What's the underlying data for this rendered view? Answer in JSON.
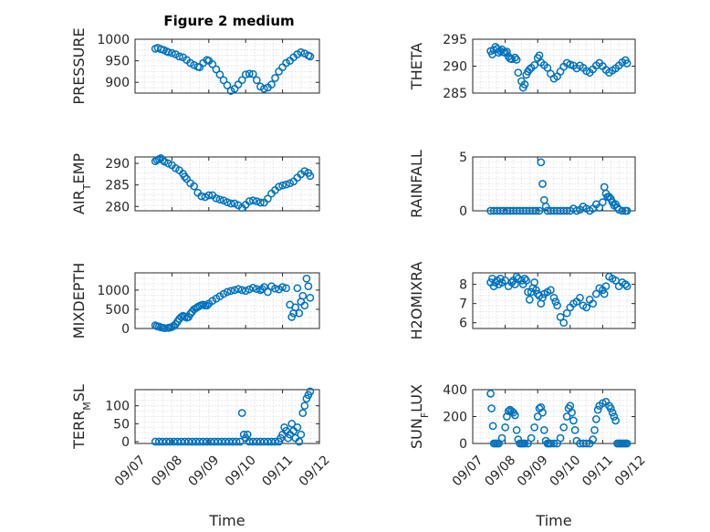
{
  "figure": {
    "title": "Figure 2 medium"
  },
  "chart_data": [
    {
      "type": "scatter",
      "ylabel": "PRESSURE",
      "ylabel_sub": "",
      "ylim": [
        875,
        1000
      ],
      "yticks": [
        900,
        950,
        1000
      ],
      "xlim": [
        0,
        5
      ],
      "grid": true,
      "show_xticks": false,
      "series": [
        {
          "color": "#0072bd",
          "x": [
            0.55,
            0.62,
            0.7,
            0.78,
            0.85,
            0.9,
            1.0,
            1.1,
            1.2,
            1.3,
            1.4,
            1.5,
            1.6,
            1.7,
            1.75,
            1.85,
            1.95,
            2.0,
            2.1,
            2.2,
            2.3,
            2.4,
            2.5,
            2.6,
            2.7,
            2.8,
            2.9,
            3.0,
            3.1,
            3.2,
            3.3,
            3.4,
            3.5,
            3.6,
            3.7,
            3.8,
            3.9,
            4.0,
            4.1,
            4.2,
            4.3,
            4.4,
            4.5,
            4.6,
            4.7,
            4.75
          ],
          "y": [
            978,
            980,
            977,
            975,
            972,
            970,
            968,
            965,
            960,
            958,
            952,
            945,
            940,
            936,
            935,
            945,
            952,
            950,
            942,
            930,
            918,
            905,
            893,
            880,
            885,
            895,
            905,
            918,
            920,
            919,
            905,
            890,
            885,
            888,
            895,
            910,
            925,
            935,
            945,
            950,
            958,
            965,
            970,
            967,
            962,
            960
          ]
        }
      ]
    },
    {
      "type": "scatter",
      "ylabel": "THETA",
      "ylabel_sub": "",
      "ylim": [
        285,
        295
      ],
      "yticks": [
        285,
        290,
        295
      ],
      "xlim": [
        0,
        5
      ],
      "grid": true,
      "show_xticks": false,
      "series": [
        {
          "color": "#0072bd",
          "x": [
            0.55,
            0.6,
            0.65,
            0.7,
            0.75,
            0.8,
            0.85,
            0.9,
            0.95,
            1.0,
            1.05,
            1.1,
            1.15,
            1.2,
            1.3,
            1.35,
            1.4,
            1.5,
            1.55,
            1.6,
            1.65,
            1.7,
            1.75,
            1.8,
            1.9,
            2.0,
            2.05,
            2.1,
            2.2,
            2.3,
            2.4,
            2.5,
            2.6,
            2.7,
            2.8,
            2.9,
            3.0,
            3.1,
            3.2,
            3.3,
            3.4,
            3.5,
            3.6,
            3.7,
            3.8,
            3.9,
            4.0,
            4.1,
            4.2,
            4.3,
            4.4,
            4.5,
            4.6,
            4.7,
            4.75
          ],
          "y": [
            292.8,
            292.2,
            293.0,
            293.6,
            293.2,
            292.5,
            292.8,
            293.1,
            292.6,
            292.5,
            292.7,
            291.8,
            291.4,
            291.3,
            291.6,
            291.2,
            288.8,
            287.2,
            286.0,
            286.6,
            288.4,
            289.0,
            289.4,
            289.7,
            290.2,
            291.5,
            292.0,
            290.7,
            290.2,
            289.7,
            288.6,
            287.7,
            288.1,
            289.0,
            289.9,
            290.6,
            290.3,
            290.1,
            289.6,
            290.1,
            289.7,
            289.1,
            288.8,
            289.4,
            290.1,
            290.6,
            290.0,
            289.3,
            288.8,
            289.2,
            289.6,
            290.1,
            290.7,
            291.1,
            290.5
          ]
        }
      ]
    },
    {
      "type": "scatter",
      "ylabel": "AIR",
      "ylabel_sub": "T",
      "ylabel_after": "EMP",
      "ylim": [
        279,
        291.5
      ],
      "yticks": [
        280,
        285,
        290
      ],
      "xlim": [
        0,
        5
      ],
      "grid": true,
      "show_xticks": false,
      "series": [
        {
          "color": "#0072bd",
          "x": [
            0.55,
            0.6,
            0.65,
            0.7,
            0.75,
            0.8,
            0.9,
            1.0,
            1.1,
            1.2,
            1.3,
            1.35,
            1.4,
            1.5,
            1.6,
            1.7,
            1.8,
            1.9,
            2.0,
            2.1,
            2.2,
            2.3,
            2.4,
            2.5,
            2.6,
            2.7,
            2.8,
            2.9,
            3.0,
            3.1,
            3.2,
            3.3,
            3.4,
            3.5,
            3.6,
            3.7,
            3.8,
            3.9,
            4.0,
            4.1,
            4.2,
            4.3,
            4.4,
            4.5,
            4.6,
            4.7,
            4.75
          ],
          "y": [
            290.5,
            290.8,
            291.0,
            291.2,
            290.8,
            290.4,
            290.0,
            289.6,
            288.9,
            288.4,
            287.6,
            286.9,
            286.4,
            285.4,
            284.7,
            283.2,
            282.4,
            282.2,
            282.6,
            282.6,
            281.9,
            281.6,
            281.4,
            281.0,
            280.7,
            280.7,
            280.3,
            279.7,
            280.4,
            281.2,
            281.4,
            281.2,
            280.9,
            280.9,
            281.8,
            283.0,
            283.8,
            284.6,
            284.9,
            285.1,
            285.4,
            285.8,
            286.7,
            287.5,
            288.2,
            287.8,
            287.1
          ]
        }
      ]
    },
    {
      "type": "scatter",
      "ylabel": "RAINFALL",
      "ylabel_sub": "",
      "ylim": [
        0,
        5
      ],
      "yticks": [
        0,
        5
      ],
      "xlim": [
        0,
        5
      ],
      "grid": true,
      "show_xticks": false,
      "series": [
        {
          "color": "#0072bd",
          "x": [
            0.55,
            0.65,
            0.75,
            0.85,
            0.95,
            1.05,
            1.15,
            1.25,
            1.35,
            1.45,
            1.55,
            1.65,
            1.75,
            1.85,
            1.95,
            2.05,
            2.1,
            2.15,
            2.2,
            2.25,
            2.3,
            2.4,
            2.5,
            2.6,
            2.7,
            2.8,
            2.9,
            3.0,
            3.1,
            3.2,
            3.3,
            3.4,
            3.5,
            3.6,
            3.7,
            3.8,
            3.9,
            4.0,
            4.05,
            4.1,
            4.15,
            4.2,
            4.25,
            4.3,
            4.35,
            4.4,
            4.45,
            4.5,
            4.6,
            4.7,
            4.75
          ],
          "y": [
            0,
            0,
            0,
            0,
            0,
            0,
            0,
            0,
            0,
            0,
            0,
            0,
            0,
            0,
            0,
            0,
            4.5,
            2.5,
            1.0,
            0.4,
            0,
            0,
            0,
            0,
            0,
            0,
            0,
            0,
            0.2,
            0,
            0.1,
            0.4,
            0.2,
            0,
            0.2,
            0.6,
            0.3,
            0.8,
            2.2,
            1.6,
            1.3,
            1.3,
            1.1,
            0.8,
            0.5,
            0.6,
            0.3,
            0.1,
            0,
            0,
            0
          ]
        }
      ]
    },
    {
      "type": "scatter",
      "ylabel": "MIXDEPTH",
      "ylabel_sub": "",
      "ylim": [
        0,
        1450
      ],
      "yticks": [
        0,
        500,
        1000
      ],
      "xlim": [
        0,
        5
      ],
      "grid": true,
      "show_xticks": false,
      "series": [
        {
          "color": "#0072bd",
          "x": [
            0.55,
            0.6,
            0.65,
            0.7,
            0.75,
            0.8,
            0.9,
            0.95,
            1.0,
            1.05,
            1.1,
            1.15,
            1.2,
            1.25,
            1.3,
            1.35,
            1.4,
            1.45,
            1.5,
            1.55,
            1.6,
            1.65,
            1.7,
            1.75,
            1.8,
            1.85,
            1.9,
            1.95,
            2.0,
            2.1,
            2.2,
            2.3,
            2.4,
            2.5,
            2.6,
            2.7,
            2.8,
            2.9,
            3.0,
            3.1,
            3.2,
            3.3,
            3.4,
            3.45,
            3.5,
            3.6,
            3.7,
            3.8,
            3.9,
            4.0,
            4.1,
            4.2,
            4.25,
            4.3,
            4.35,
            4.4,
            4.45,
            4.5,
            4.55,
            4.6,
            4.65,
            4.7,
            4.75
          ],
          "y": [
            80,
            60,
            50,
            30,
            20,
            10,
            15,
            25,
            40,
            70,
            110,
            180,
            250,
            300,
            330,
            310,
            280,
            300,
            380,
            440,
            500,
            530,
            560,
            590,
            610,
            620,
            600,
            600,
            650,
            720,
            780,
            840,
            900,
            950,
            980,
            1000,
            1030,
            1000,
            980,
            1020,
            1060,
            1030,
            1000,
            1030,
            1080,
            950,
            1100,
            1040,
            1020,
            1080,
            1050,
            620,
            300,
            400,
            550,
            1050,
            400,
            700,
            850,
            600,
            1300,
            1100,
            800
          ]
        }
      ]
    },
    {
      "type": "scatter",
      "ylabel": "H2OMIXRA",
      "ylabel_sub": "",
      "ylim": [
        5.7,
        8.6
      ],
      "yticks": [
        6,
        7,
        8
      ],
      "xlim": [
        0,
        5
      ],
      "grid": true,
      "show_xticks": false,
      "series": [
        {
          "color": "#0072bd",
          "x": [
            0.55,
            0.6,
            0.65,
            0.7,
            0.75,
            0.8,
            0.85,
            0.9,
            1.0,
            1.1,
            1.2,
            1.25,
            1.3,
            1.35,
            1.4,
            1.5,
            1.55,
            1.6,
            1.65,
            1.7,
            1.75,
            1.8,
            1.85,
            1.9,
            1.95,
            2.0,
            2.05,
            2.1,
            2.15,
            2.2,
            2.3,
            2.4,
            2.5,
            2.55,
            2.6,
            2.7,
            2.8,
            2.9,
            3.0,
            3.1,
            3.2,
            3.3,
            3.4,
            3.5,
            3.6,
            3.7,
            3.8,
            3.9,
            4.0,
            4.05,
            4.1,
            4.2,
            4.3,
            4.4,
            4.5,
            4.6,
            4.7,
            4.75
          ],
          "y": [
            8.1,
            8.3,
            7.9,
            8.1,
            8.2,
            8.0,
            8.3,
            8.1,
            8.2,
            7.9,
            8.1,
            8.2,
            8.0,
            8.4,
            8.3,
            8.2,
            8.0,
            8.3,
            8.2,
            7.6,
            7.2,
            7.6,
            7.8,
            8.1,
            7.7,
            7.5,
            7.4,
            7.0,
            7.3,
            7.5,
            7.6,
            7.7,
            7.3,
            7.1,
            6.9,
            6.3,
            6.0,
            6.5,
            6.8,
            7.0,
            7.1,
            7.3,
            6.9,
            6.8,
            7.2,
            7.0,
            7.5,
            7.8,
            7.7,
            7.5,
            7.9,
            8.4,
            8.3,
            8.2,
            7.9,
            8.1,
            8.0,
            7.9
          ]
        }
      ]
    },
    {
      "type": "scatter",
      "ylabel": "TERR",
      "ylabel_sub": "M",
      "ylabel_after": "SL",
      "ylim": [
        -5,
        145
      ],
      "yticks": [
        0,
        50,
        100
      ],
      "xlim": [
        0,
        5
      ],
      "grid": true,
      "show_xticks": true,
      "xticklabels": [
        "09/07",
        "09/08",
        "09/09",
        "09/10",
        "09/11",
        "09/12"
      ],
      "xlabel": "Time",
      "series": [
        {
          "color": "#0072bd",
          "x": [
            0.55,
            0.65,
            0.75,
            0.85,
            0.95,
            1.05,
            1.15,
            1.25,
            1.35,
            1.45,
            1.55,
            1.65,
            1.75,
            1.85,
            1.95,
            2.05,
            2.15,
            2.25,
            2.35,
            2.45,
            2.55,
            2.65,
            2.75,
            2.85,
            2.9,
            2.95,
            3.0,
            3.05,
            3.1,
            3.2,
            3.3,
            3.4,
            3.5,
            3.6,
            3.7,
            3.8,
            3.9,
            3.95,
            4.0,
            4.05,
            4.1,
            4.15,
            4.2,
            4.25,
            4.3,
            4.35,
            4.4,
            4.45,
            4.5,
            4.55,
            4.6,
            4.65,
            4.7,
            4.75
          ],
          "y": [
            0,
            0,
            0,
            0,
            0,
            0,
            0,
            0,
            0,
            0,
            0,
            0,
            0,
            0,
            0,
            0,
            0,
            0,
            0,
            0,
            0,
            0,
            0,
            0,
            80,
            20,
            10,
            20,
            0,
            0,
            0,
            0,
            0,
            0,
            0,
            0,
            0,
            10,
            20,
            40,
            30,
            10,
            20,
            50,
            30,
            10,
            40,
            0,
            20,
            80,
            100,
            120,
            130,
            140
          ]
        }
      ]
    },
    {
      "type": "scatter",
      "ylabel": "SUN",
      "ylabel_sub": "F",
      "ylabel_after": "LUX",
      "ylim": [
        0,
        400
      ],
      "yticks": [
        0,
        200,
        400
      ],
      "xlim": [
        0,
        5
      ],
      "grid": true,
      "show_xticks": true,
      "xticklabels": [
        "09/07",
        "09/08",
        "09/09",
        "09/10",
        "09/11",
        "09/12"
      ],
      "xlabel": "Time",
      "series": [
        {
          "color": "#0072bd",
          "x": [
            0.55,
            0.58,
            0.62,
            0.65,
            0.7,
            0.75,
            0.8,
            0.9,
            1.0,
            1.05,
            1.1,
            1.15,
            1.2,
            1.25,
            1.3,
            1.35,
            1.4,
            1.45,
            1.5,
            1.55,
            1.6,
            1.7,
            1.8,
            1.9,
            2.0,
            2.05,
            2.1,
            2.15,
            2.2,
            2.25,
            2.3,
            2.35,
            2.4,
            2.5,
            2.6,
            2.7,
            2.8,
            2.9,
            2.95,
            3.0,
            3.05,
            3.1,
            3.15,
            3.2,
            3.3,
            3.4,
            3.5,
            3.6,
            3.7,
            3.75,
            3.8,
            3.85,
            3.9,
            4.0,
            4.1,
            4.2,
            4.25,
            4.3,
            4.35,
            4.4,
            4.45,
            4.5,
            4.55,
            4.6,
            4.65,
            4.7,
            4.75
          ],
          "y": [
            370,
            260,
            130,
            0,
            0,
            0,
            0,
            40,
            120,
            200,
            240,
            250,
            240,
            230,
            210,
            100,
            30,
            0,
            0,
            0,
            0,
            0,
            40,
            120,
            200,
            260,
            270,
            230,
            100,
            20,
            0,
            0,
            0,
            0,
            0,
            40,
            120,
            200,
            260,
            280,
            230,
            170,
            100,
            20,
            0,
            0,
            0,
            0,
            30,
            100,
            180,
            250,
            280,
            300,
            310,
            280,
            260,
            230,
            200,
            170,
            0,
            0,
            0,
            0,
            0,
            0,
            0
          ]
        }
      ]
    }
  ]
}
